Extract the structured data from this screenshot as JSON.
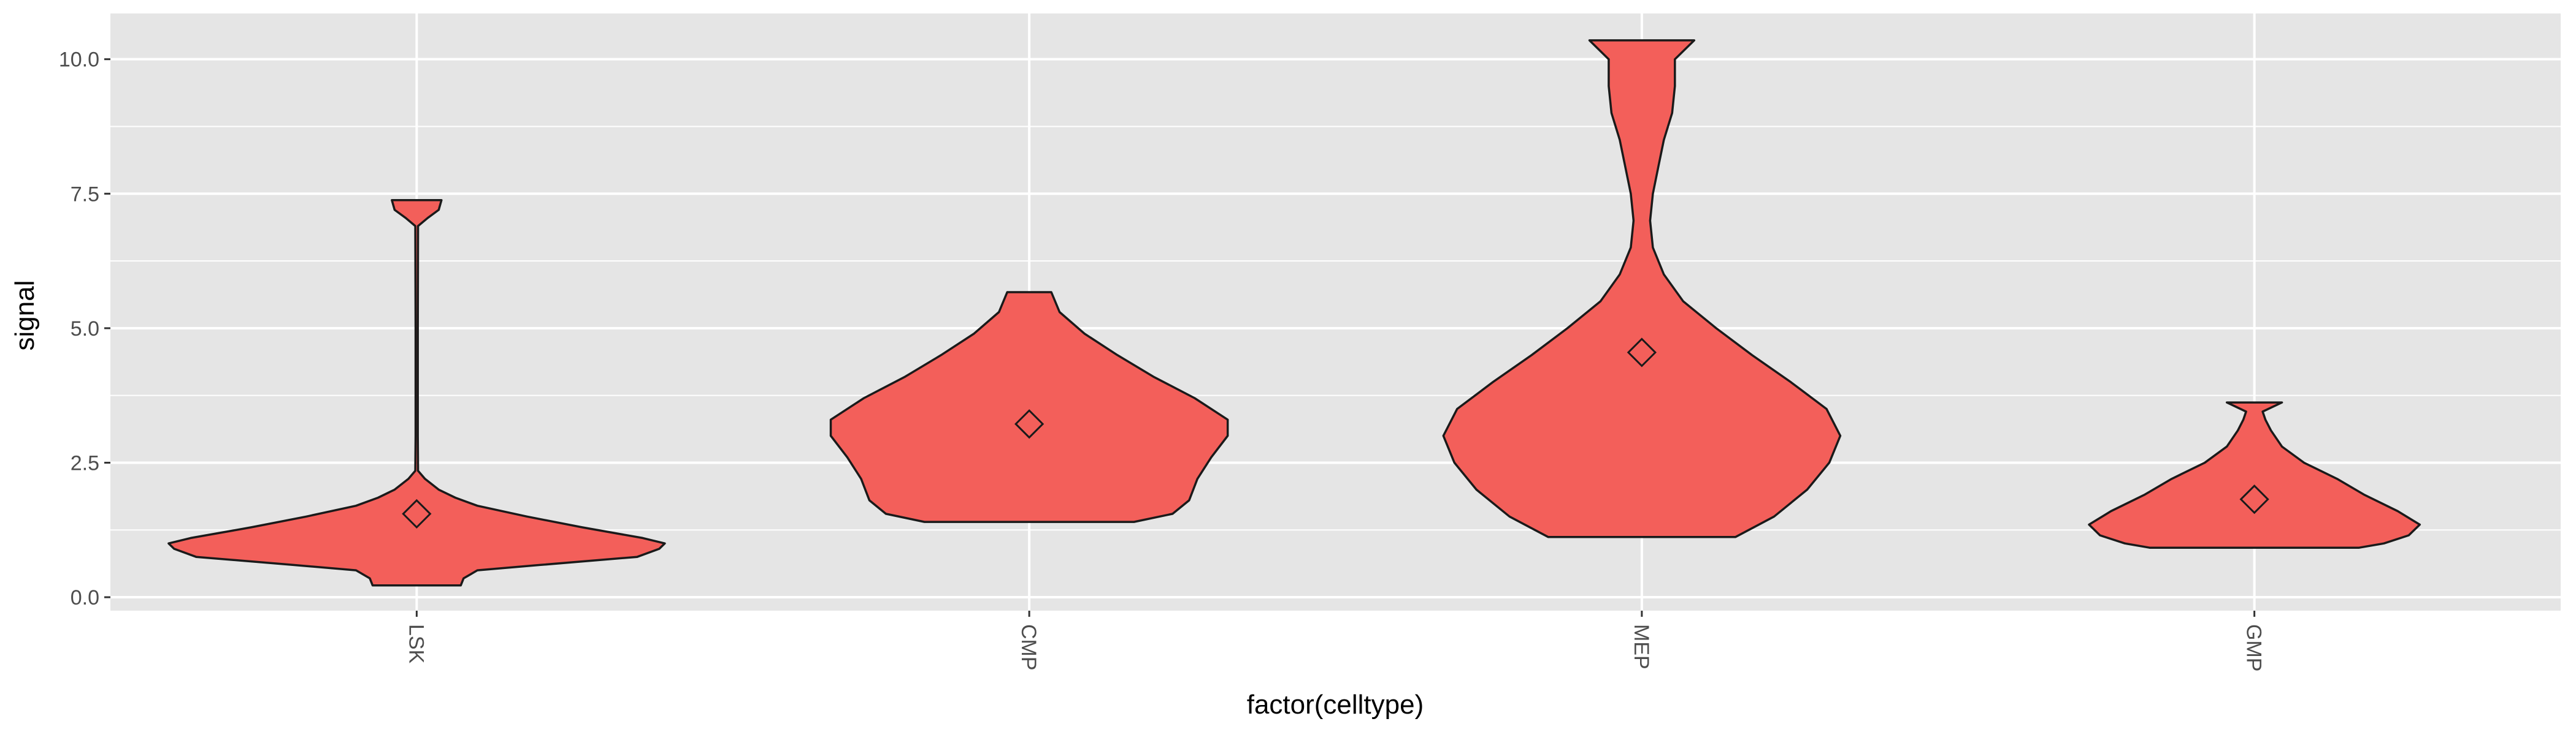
{
  "chart_data": {
    "type": "violin",
    "xlabel": "factor(celltype)",
    "ylabel": "signal",
    "categories": [
      "LSK",
      "CMP",
      "MEP",
      "GMP"
    ],
    "ylim": [
      -0.25,
      10.85
    ],
    "yticks": [
      0.0,
      2.5,
      5.0,
      7.5,
      10.0
    ],
    "ytick_labels": [
      "0.0",
      "2.5",
      "5.0",
      "7.5",
      "10.0"
    ],
    "grid": true,
    "legend": "none",
    "colors": {
      "fill": "#F35F5A",
      "stroke": "#1a1a1a",
      "panel": "#E5E5E5",
      "grid": "#FFFFFF"
    },
    "violins": [
      {
        "category": "LSK",
        "min": 0.22,
        "max": 7.38,
        "mean": 1.55,
        "profile": [
          [
            0.22,
            0.16
          ],
          [
            0.35,
            0.17
          ],
          [
            0.5,
            0.22
          ],
          [
            0.6,
            0.45
          ],
          [
            0.75,
            0.8
          ],
          [
            0.9,
            0.88
          ],
          [
            1.0,
            0.9
          ],
          [
            1.1,
            0.82
          ],
          [
            1.3,
            0.6
          ],
          [
            1.5,
            0.4
          ],
          [
            1.7,
            0.22
          ],
          [
            1.85,
            0.14
          ],
          [
            2.0,
            0.08
          ],
          [
            2.2,
            0.03
          ],
          [
            2.35,
            0.005
          ],
          [
            3.0,
            0.004
          ],
          [
            5.0,
            0.004
          ],
          [
            6.9,
            0.005
          ],
          [
            7.05,
            0.04
          ],
          [
            7.2,
            0.08
          ],
          [
            7.38,
            0.09
          ]
        ]
      },
      {
        "category": "CMP",
        "min": 1.4,
        "max": 5.67,
        "mean": 3.22,
        "profile": [
          [
            1.4,
            0.38
          ],
          [
            1.55,
            0.52
          ],
          [
            1.8,
            0.58
          ],
          [
            2.2,
            0.61
          ],
          [
            2.6,
            0.66
          ],
          [
            3.0,
            0.72
          ],
          [
            3.3,
            0.72
          ],
          [
            3.7,
            0.6
          ],
          [
            4.1,
            0.45
          ],
          [
            4.5,
            0.32
          ],
          [
            4.9,
            0.2
          ],
          [
            5.3,
            0.11
          ],
          [
            5.67,
            0.08
          ]
        ]
      },
      {
        "category": "MEP",
        "min": 1.12,
        "max": 10.35,
        "mean": 4.55,
        "profile": [
          [
            1.12,
            0.34
          ],
          [
            1.5,
            0.48
          ],
          [
            2.0,
            0.6
          ],
          [
            2.5,
            0.68
          ],
          [
            3.0,
            0.72
          ],
          [
            3.5,
            0.67
          ],
          [
            4.0,
            0.54
          ],
          [
            4.5,
            0.4
          ],
          [
            5.0,
            0.27
          ],
          [
            5.5,
            0.15
          ],
          [
            6.0,
            0.08
          ],
          [
            6.5,
            0.04
          ],
          [
            7.0,
            0.03
          ],
          [
            7.5,
            0.04
          ],
          [
            8.0,
            0.06
          ],
          [
            8.5,
            0.08
          ],
          [
            9.0,
            0.11
          ],
          [
            9.5,
            0.12
          ],
          [
            10.0,
            0.12
          ],
          [
            10.35,
            0.19
          ]
        ]
      },
      {
        "category": "GMP",
        "min": 0.92,
        "max": 3.62,
        "mean": 1.82,
        "profile": [
          [
            0.92,
            0.38
          ],
          [
            1.0,
            0.47
          ],
          [
            1.15,
            0.56
          ],
          [
            1.35,
            0.6
          ],
          [
            1.6,
            0.52
          ],
          [
            1.9,
            0.4
          ],
          [
            2.2,
            0.3
          ],
          [
            2.5,
            0.18
          ],
          [
            2.8,
            0.1
          ],
          [
            3.1,
            0.06
          ],
          [
            3.3,
            0.04
          ],
          [
            3.45,
            0.03
          ],
          [
            3.62,
            0.1
          ]
        ]
      }
    ]
  }
}
